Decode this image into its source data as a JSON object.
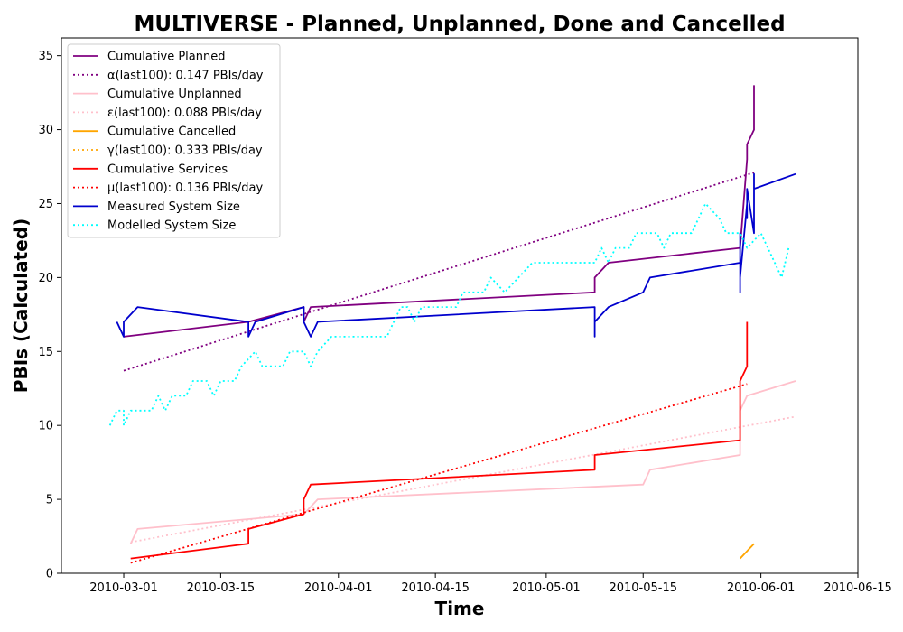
{
  "chart_data": {
    "type": "line",
    "title": "MULTIVERSE - Planned, Unplanned, Done  and Cancelled",
    "xlabel": "Time",
    "ylabel": "PBIs (Calculated)",
    "xlim": [
      "2010-02-20",
      "2010-06-15"
    ],
    "ylim": [
      0,
      36.2
    ],
    "x_ticks": [
      "2010-03-01",
      "2010-03-15",
      "2010-04-01",
      "2010-04-15",
      "2010-05-01",
      "2010-05-15",
      "2010-06-01",
      "2010-06-15"
    ],
    "y_ticks": [
      0,
      5,
      10,
      15,
      20,
      25,
      30,
      35
    ],
    "grid": false,
    "legend": "top-left",
    "series": [
      {
        "name": "Cumulative Planned",
        "color": "#800080",
        "style": "solid",
        "points": [
          [
            "2010-03-01",
            16
          ],
          [
            "2010-03-19",
            17
          ],
          [
            "2010-03-27",
            18
          ],
          [
            "2010-03-27",
            17
          ],
          [
            "2010-03-28",
            18
          ],
          [
            "2010-05-08",
            19
          ],
          [
            "2010-05-08",
            20
          ],
          [
            "2010-05-10",
            21
          ],
          [
            "2010-05-29",
            22
          ],
          [
            "2010-05-30",
            28
          ],
          [
            "2010-05-30",
            29
          ],
          [
            "2010-05-31",
            30
          ],
          [
            "2010-05-31",
            33
          ]
        ]
      },
      {
        "name": "α(last100): 0.147 PBIs/day",
        "color": "#800080",
        "style": "dotted",
        "points": [
          [
            "2010-03-01",
            13.7
          ],
          [
            "2010-05-31",
            27.1
          ]
        ]
      },
      {
        "name": "Cumulative Unplanned",
        "color": "#ffc0cb",
        "style": "solid",
        "points": [
          [
            "2010-03-02",
            2
          ],
          [
            "2010-03-03",
            3
          ],
          [
            "2010-03-27",
            4
          ],
          [
            "2010-03-29",
            5
          ],
          [
            "2010-05-15",
            6
          ],
          [
            "2010-05-16",
            7
          ],
          [
            "2010-05-29",
            8
          ],
          [
            "2010-05-29",
            11
          ],
          [
            "2010-05-30",
            12
          ],
          [
            "2010-06-06",
            13
          ]
        ]
      },
      {
        "name": "ε(last100): 0.088 PBIs/day",
        "color": "#ffc0cb",
        "style": "dotted",
        "points": [
          [
            "2010-03-02",
            2.1
          ],
          [
            "2010-06-06",
            10.6
          ]
        ]
      },
      {
        "name": "Cumulative Cancelled",
        "color": "#ffa500",
        "style": "solid",
        "points": [
          [
            "2010-05-29",
            1
          ],
          [
            "2010-05-31",
            2
          ]
        ]
      },
      {
        "name": "γ(last100): 0.333 PBIs/day",
        "color": "#ffa500",
        "style": "dotted",
        "points": []
      },
      {
        "name": "Cumulative Services",
        "color": "#ff0000",
        "style": "solid",
        "points": [
          [
            "2010-03-02",
            1
          ],
          [
            "2010-03-19",
            2
          ],
          [
            "2010-03-19",
            3
          ],
          [
            "2010-03-27",
            4
          ],
          [
            "2010-03-27",
            5
          ],
          [
            "2010-03-28",
            6
          ],
          [
            "2010-05-08",
            7
          ],
          [
            "2010-05-08",
            8
          ],
          [
            "2010-05-29",
            9
          ],
          [
            "2010-05-29",
            13
          ],
          [
            "2010-05-30",
            14
          ],
          [
            "2010-05-30",
            15
          ],
          [
            "2010-05-30",
            17
          ]
        ]
      },
      {
        "name": "μ(last100): 0.136 PBIs/day",
        "color": "#ff0000",
        "style": "dotted",
        "points": [
          [
            "2010-03-02",
            0.7
          ],
          [
            "2010-05-30",
            12.8
          ]
        ]
      },
      {
        "name": "Measured System Size",
        "color": "#0000cd",
        "style": "solid",
        "points": [
          [
            "2010-02-28",
            17
          ],
          [
            "2010-03-01",
            16
          ],
          [
            "2010-03-01",
            17
          ],
          [
            "2010-03-03",
            18
          ],
          [
            "2010-03-19",
            17
          ],
          [
            "2010-03-19",
            16
          ],
          [
            "2010-03-20",
            17
          ],
          [
            "2010-03-27",
            18
          ],
          [
            "2010-03-27",
            17
          ],
          [
            "2010-03-28",
            16
          ],
          [
            "2010-03-29",
            17
          ],
          [
            "2010-05-08",
            18
          ],
          [
            "2010-05-08",
            16
          ],
          [
            "2010-05-08",
            17
          ],
          [
            "2010-05-10",
            18
          ],
          [
            "2010-05-15",
            19
          ],
          [
            "2010-05-16",
            20
          ],
          [
            "2010-05-29",
            21
          ],
          [
            "2010-05-29",
            19
          ],
          [
            "2010-05-29",
            23
          ],
          [
            "2010-05-29",
            20
          ],
          [
            "2010-05-30",
            25
          ],
          [
            "2010-05-30",
            24
          ],
          [
            "2010-05-30",
            26
          ],
          [
            "2010-05-31",
            23
          ],
          [
            "2010-05-31",
            24
          ],
          [
            "2010-05-31",
            27
          ],
          [
            "2010-05-31",
            26
          ],
          [
            "2010-06-06",
            27
          ]
        ]
      },
      {
        "name": "Modelled System Size",
        "color": "#00ffff",
        "style": "dotted",
        "points": [
          [
            "2010-02-27",
            10
          ],
          [
            "2010-02-28",
            11
          ],
          [
            "2010-03-01",
            11
          ],
          [
            "2010-03-01",
            10
          ],
          [
            "2010-03-02",
            11
          ],
          [
            "2010-03-05",
            11
          ],
          [
            "2010-03-06",
            12
          ],
          [
            "2010-03-07",
            11
          ],
          [
            "2010-03-08",
            12
          ],
          [
            "2010-03-10",
            12
          ],
          [
            "2010-03-11",
            13
          ],
          [
            "2010-03-13",
            13
          ],
          [
            "2010-03-14",
            12
          ],
          [
            "2010-03-15",
            13
          ],
          [
            "2010-03-17",
            13
          ],
          [
            "2010-03-18",
            14
          ],
          [
            "2010-03-20",
            15
          ],
          [
            "2010-03-21",
            14
          ],
          [
            "2010-03-24",
            14
          ],
          [
            "2010-03-25",
            15
          ],
          [
            "2010-03-27",
            15
          ],
          [
            "2010-03-28",
            14
          ],
          [
            "2010-03-29",
            15
          ],
          [
            "2010-03-31",
            16
          ],
          [
            "2010-04-08",
            16
          ],
          [
            "2010-04-09",
            17
          ],
          [
            "2010-04-10",
            18
          ],
          [
            "2010-04-11",
            18
          ],
          [
            "2010-04-12",
            17
          ],
          [
            "2010-04-13",
            18
          ],
          [
            "2010-04-18",
            18
          ],
          [
            "2010-04-19",
            19
          ],
          [
            "2010-04-22",
            19
          ],
          [
            "2010-04-23",
            20
          ],
          [
            "2010-04-25",
            19
          ],
          [
            "2010-04-27",
            20
          ],
          [
            "2010-04-29",
            21
          ],
          [
            "2010-05-08",
            21
          ],
          [
            "2010-05-09",
            22
          ],
          [
            "2010-05-10",
            21
          ],
          [
            "2010-05-11",
            22
          ],
          [
            "2010-05-13",
            22
          ],
          [
            "2010-05-14",
            23
          ],
          [
            "2010-05-17",
            23
          ],
          [
            "2010-05-18",
            22
          ],
          [
            "2010-05-19",
            23
          ],
          [
            "2010-05-22",
            23
          ],
          [
            "2010-05-24",
            25
          ],
          [
            "2010-05-26",
            24
          ],
          [
            "2010-05-27",
            23
          ],
          [
            "2010-05-28",
            23
          ],
          [
            "2010-05-29",
            23
          ],
          [
            "2010-05-30",
            22
          ],
          [
            "2010-06-01",
            23
          ],
          [
            "2010-06-02",
            22
          ],
          [
            "2010-06-04",
            20
          ],
          [
            "2010-06-05",
            22
          ]
        ]
      }
    ]
  }
}
